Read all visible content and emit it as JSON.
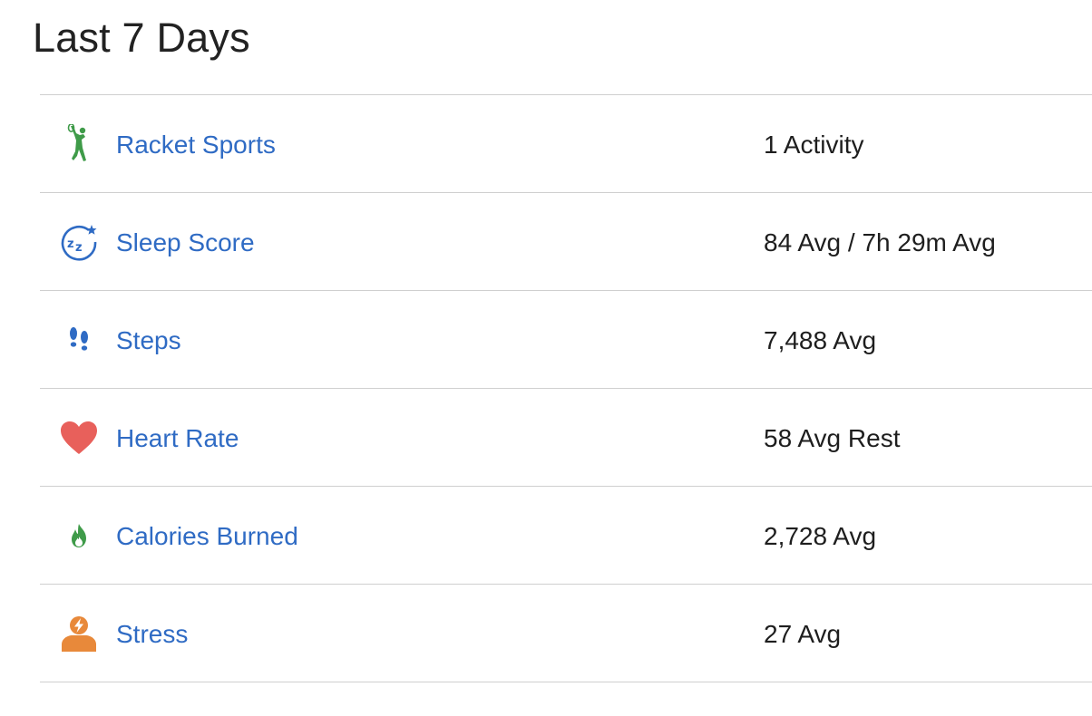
{
  "title": "Last 7 Days",
  "colors": {
    "link": "#2f6bc4",
    "divider": "#cfcfcf",
    "racket_icon": "#3f9b49",
    "sleep_icon": "#2f6bc4",
    "steps_icon": "#2f6bc4",
    "heart_icon": "#e8605b",
    "calories_icon": "#3f9b49",
    "stress_icon": "#e8893a"
  },
  "rows": [
    {
      "icon": "racket-sports-icon",
      "label": "Racket Sports",
      "value": "1 Activity"
    },
    {
      "icon": "sleep-score-icon",
      "label": "Sleep Score",
      "value": "84 Avg / 7h 29m Avg"
    },
    {
      "icon": "steps-icon",
      "label": "Steps",
      "value": "7,488 Avg"
    },
    {
      "icon": "heart-icon",
      "label": "Heart Rate",
      "value": "58 Avg Rest"
    },
    {
      "icon": "flame-icon",
      "label": "Calories Burned",
      "value": "2,728 Avg"
    },
    {
      "icon": "stress-icon",
      "label": "Stress",
      "value": "27 Avg"
    }
  ]
}
